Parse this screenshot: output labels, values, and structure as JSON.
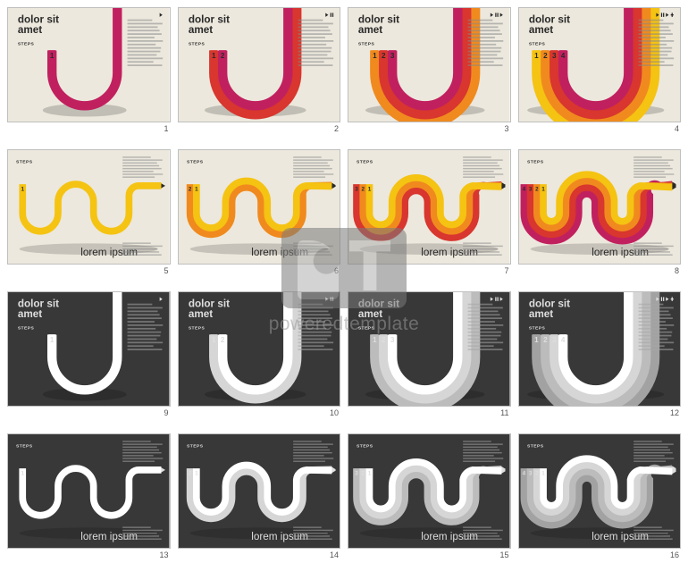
{
  "watermark_text": "poweredtemplate",
  "colors": {
    "light_bg": "#ece8dd",
    "dark_bg": "#383838",
    "magenta": "#c1205f",
    "orange": "#f08a1e",
    "yellow": "#f5c312",
    "red": "#d8362e",
    "white": "#ffffff",
    "gray1": "#f2f2f2",
    "gray2": "#d6d6d6",
    "gray3": "#bcbcbc",
    "gray4": "#a2a2a2",
    "shadow": "#00000033",
    "text_dark": "#2a2a2a",
    "text_light": "#dedede",
    "filler_light": "#888",
    "filler_dark": "#a6a6a6"
  },
  "slides": [
    {
      "num": "1",
      "theme": "light",
      "layout": "U",
      "bands": 1,
      "palette": "color",
      "title": "dolor sit amet",
      "label": "STEPS",
      "footer": ""
    },
    {
      "num": "2",
      "theme": "light",
      "layout": "U",
      "bands": 2,
      "palette": "color",
      "title": "dolor sit amet",
      "label": "STEPS",
      "footer": ""
    },
    {
      "num": "3",
      "theme": "light",
      "layout": "U",
      "bands": 3,
      "palette": "color",
      "title": "dolor sit amet",
      "label": "STEPS",
      "footer": ""
    },
    {
      "num": "4",
      "theme": "light",
      "layout": "U",
      "bands": 4,
      "palette": "color",
      "title": "dolor sit amet",
      "label": "STEPS",
      "footer": ""
    },
    {
      "num": "5",
      "theme": "light",
      "layout": "UU",
      "bands": 1,
      "palette": "color",
      "title": "",
      "label": "STEPS",
      "footer": "lorem ipsum"
    },
    {
      "num": "6",
      "theme": "light",
      "layout": "UU",
      "bands": 2,
      "palette": "color",
      "title": "",
      "label": "STEPS",
      "footer": "lorem ipsum"
    },
    {
      "num": "7",
      "theme": "light",
      "layout": "UU",
      "bands": 3,
      "palette": "color",
      "title": "",
      "label": "STEPS",
      "footer": "lorem ipsum"
    },
    {
      "num": "8",
      "theme": "light",
      "layout": "UU",
      "bands": 4,
      "palette": "color",
      "title": "",
      "label": "STEPS",
      "footer": "lorem ipsum"
    },
    {
      "num": "9",
      "theme": "dark",
      "layout": "U",
      "bands": 1,
      "palette": "mono",
      "title": "dolor sit amet",
      "label": "STEPS",
      "footer": ""
    },
    {
      "num": "10",
      "theme": "dark",
      "layout": "U",
      "bands": 2,
      "palette": "mono",
      "title": "dolor sit amet",
      "label": "STEPS",
      "footer": ""
    },
    {
      "num": "11",
      "theme": "dark",
      "layout": "U",
      "bands": 3,
      "palette": "mono",
      "title": "dolor sit amet",
      "label": "STEPS",
      "footer": ""
    },
    {
      "num": "12",
      "theme": "dark",
      "layout": "U",
      "bands": 4,
      "palette": "mono",
      "title": "dolor sit amet",
      "label": "STEPS",
      "footer": ""
    },
    {
      "num": "13",
      "theme": "dark",
      "layout": "UU",
      "bands": 1,
      "palette": "mono",
      "title": "",
      "label": "STEPS",
      "footer": "lorem ipsum"
    },
    {
      "num": "14",
      "theme": "dark",
      "layout": "UU",
      "bands": 2,
      "palette": "mono",
      "title": "",
      "label": "STEPS",
      "footer": "lorem ipsum"
    },
    {
      "num": "15",
      "theme": "dark",
      "layout": "UU",
      "bands": 3,
      "palette": "mono",
      "title": "",
      "label": "STEPS",
      "footer": "lorem ipsum"
    },
    {
      "num": "16",
      "theme": "dark",
      "layout": "UU",
      "bands": 4,
      "palette": "mono",
      "title": "",
      "label": "STEPS",
      "footer": "lorem ipsum"
    }
  ]
}
